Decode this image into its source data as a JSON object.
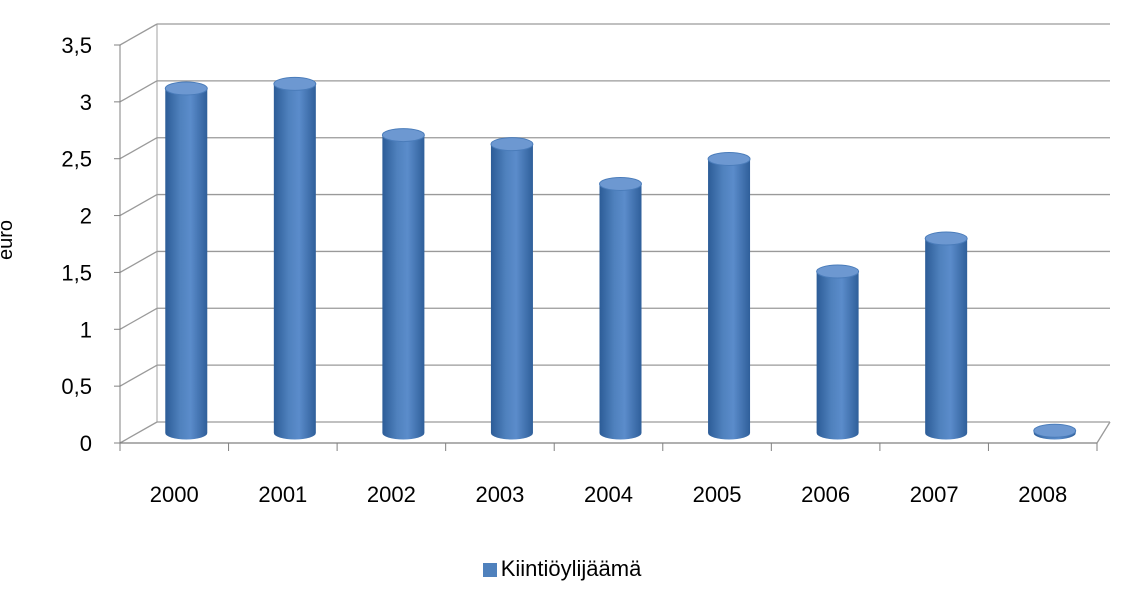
{
  "chart_data": {
    "type": "bar",
    "style": "3d-cylinder",
    "categories": [
      "2000",
      "2001",
      "2002",
      "2003",
      "2004",
      "2005",
      "2006",
      "2007",
      "2008"
    ],
    "series": [
      {
        "name": "Kiintiöylijäämä",
        "values": [
          3.03,
          3.07,
          2.62,
          2.54,
          2.19,
          2.41,
          1.42,
          1.71,
          0.02
        ],
        "color": "#4f81bd"
      }
    ],
    "ylabel": "euro",
    "xlabel": "",
    "ylim": [
      0,
      3.5
    ],
    "yticks": [
      "0",
      "0,5",
      "1",
      "1,5",
      "2",
      "2,5",
      "3",
      "3,5"
    ],
    "grid": true,
    "legend": "bottom-center"
  }
}
